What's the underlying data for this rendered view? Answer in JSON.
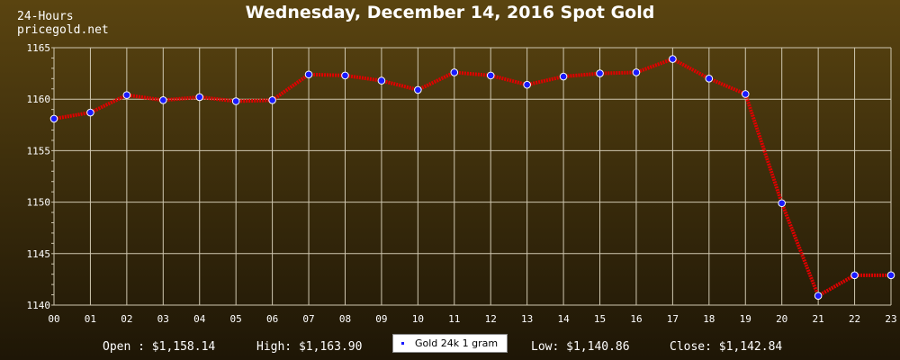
{
  "header": {
    "title": "Wednesday, December 14, 2016 Spot Gold",
    "corner_line1": "24-Hours",
    "corner_line2": "pricegold.net"
  },
  "footer": {
    "open_label": "Open : $1,158.14",
    "high_label": "High: $1,163.90",
    "low_label": "Low: $1,140.86",
    "close_label": "Close: $1,142.84"
  },
  "colors": {
    "line": "#e00000",
    "marker": "#1a1aff",
    "grid": "#cfc7b0"
  },
  "chart_data": {
    "type": "line",
    "title": "Wednesday, December 14, 2016 Spot Gold",
    "categories": [
      "00",
      "01",
      "02",
      "03",
      "04",
      "05",
      "06",
      "07",
      "08",
      "09",
      "10",
      "11",
      "12",
      "13",
      "14",
      "15",
      "16",
      "17",
      "18",
      "19",
      "20",
      "21",
      "22",
      "23"
    ],
    "series": [
      {
        "name": "Gold 24k 1 gram",
        "values": [
          1158.1,
          1158.7,
          1160.4,
          1159.9,
          1160.2,
          1159.8,
          1159.9,
          1162.4,
          1162.3,
          1161.8,
          1160.9,
          1162.6,
          1162.3,
          1161.4,
          1162.2,
          1162.5,
          1162.6,
          1163.9,
          1162.0,
          1160.5,
          1149.9,
          1140.9,
          1142.9,
          1142.9
        ]
      }
    ],
    "ylim": [
      1140,
      1165
    ],
    "yticks": [
      1140,
      1145,
      1150,
      1155,
      1160,
      1165
    ],
    "grid": true,
    "legend": "bottom-center"
  }
}
